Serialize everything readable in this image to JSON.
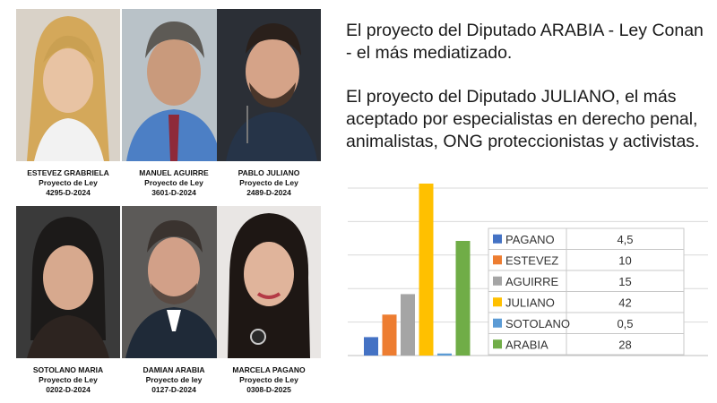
{
  "people": [
    {
      "name": "ESTEVEZ GRABRIELA",
      "line2": "Proyecto de Ley",
      "line3": "4295-D-2024"
    },
    {
      "name": "MANUEL AGUIRRE",
      "line2": "Proyecto de Ley",
      "line3": "3601-D-2024"
    },
    {
      "name": "PABLO JULIANO",
      "line2": "Proyecto de Ley",
      "line3": "2489-D-2024"
    },
    {
      "name": "SOTOLANO MARIA",
      "line2": "Proyecto de Ley",
      "line3": "0202-D-2024"
    },
    {
      "name": "DAMIAN ARABIA",
      "line2": "Proyecto de ley",
      "line3": "0127-D-2024"
    },
    {
      "name": "MARCELA PAGANO",
      "line2": "Proyecto de Ley",
      "line3": "0308-D-2025"
    }
  ],
  "text": {
    "paragraph1": "El proyecto del Diputado ARABIA - Ley Conan - el más mediatizado.",
    "paragraph2": "El proyecto del Diputado JULIANO, el más aceptado por especialistas en derecho penal, animalistas, ONG proteccionistas y activistas."
  },
  "chart_data": {
    "type": "bar",
    "categories": [
      "PAGANO",
      "ESTEVEZ",
      "AGUIRRE",
      "JULIANO",
      "SOTOLANO",
      "ARABIA"
    ],
    "values": [
      4.5,
      10,
      15,
      42,
      0.5,
      28
    ],
    "value_labels": [
      "4,5",
      "10",
      "15",
      "42",
      "0,5",
      "28"
    ],
    "colors": [
      "#4472c4",
      "#ed7d31",
      "#a5a5a5",
      "#ffc000",
      "#5b9bd5",
      "#70ad47"
    ],
    "ylim": [
      0,
      42
    ],
    "grid": true,
    "legend": "table-right"
  }
}
